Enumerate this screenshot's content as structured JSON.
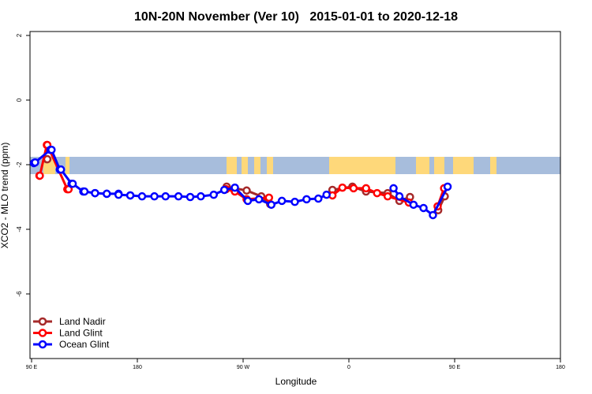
{
  "chart_data": {
    "type": "line",
    "title": "10N-20N November (Ver 10)   2015-01-01 to 2020-12-18",
    "xlabel": "Longitude",
    "ylabel": "XCO2 - MLO trend (ppm)",
    "x_ticks": [
      {
        "lon": 90,
        "label": "90 E"
      },
      {
        "lon": 180,
        "label": "180"
      },
      {
        "lon": -90,
        "label": "90 W"
      },
      {
        "lon": 0,
        "label": "0"
      },
      {
        "lon": 90,
        "label": "90 E",
        "wrap": true
      },
      {
        "lon": 180,
        "label": "180",
        "wrap": true
      }
    ],
    "y_ticks": [
      2,
      0,
      -2,
      -4,
      -6
    ],
    "ylim": [
      -8.0,
      2.1
    ],
    "xlim_note": "90E eastward through 180 and 0 to 180",
    "grid": false,
    "legend_position": "bottom-left",
    "background_map": {
      "ocean_color": "#a7bddc",
      "land_color": "#fed87a",
      "lat_band": "10N-20N"
    },
    "series": [
      {
        "name": "Land Nadir",
        "color": "#a52a2a",
        "points": [
          [
            103.4,
            -1.83
          ],
          [
            -104,
            -2.68
          ],
          [
            -87,
            -2.8
          ],
          [
            -74.5,
            -2.98
          ],
          [
            -67,
            -3.22
          ],
          [
            -14,
            -2.78
          ],
          [
            3,
            -2.68
          ],
          [
            14.6,
            -2.83
          ],
          [
            33,
            -2.88
          ],
          [
            43,
            -3.12
          ],
          [
            52,
            -3.0
          ],
          [
            76,
            -3.41
          ],
          [
            81.6,
            -2.98
          ],
          [
            103,
            -1.83
          ]
        ]
      },
      {
        "name": "Land Glint",
        "color": "#ff0000",
        "points": [
          [
            96.7,
            -2.34
          ],
          [
            103.4,
            -1.39
          ],
          [
            121.5,
            -2.76
          ],
          [
            -104.6,
            -2.76
          ],
          [
            -97,
            -2.83
          ],
          [
            -87,
            -3.07
          ],
          [
            -68,
            -3.02
          ],
          [
            -14,
            -2.95
          ],
          [
            -5.5,
            -2.71
          ],
          [
            4,
            -2.73
          ],
          [
            14.6,
            -2.73
          ],
          [
            24,
            -2.88
          ],
          [
            33,
            -2.98
          ],
          [
            51,
            -3.17
          ],
          [
            75.5,
            -3.29
          ],
          [
            81,
            -2.73
          ],
          [
            97,
            -2.34
          ],
          [
            103,
            -1.39
          ],
          [
            120.4,
            -2.76
          ]
        ]
      },
      {
        "name": "Ocean Glint",
        "color": "#0000ff",
        "points": [
          [
            93,
            -1.93
          ],
          [
            107,
            -1.54
          ],
          [
            115,
            -2.15
          ],
          [
            125,
            -2.59
          ],
          [
            135,
            -2.83
          ],
          [
            144,
            -2.88
          ],
          [
            154,
            -2.9
          ],
          [
            164,
            -2.9
          ],
          [
            174,
            -2.95
          ],
          [
            -176,
            -2.98
          ],
          [
            -165.5,
            -2.98
          ],
          [
            -156,
            -2.98
          ],
          [
            -145,
            -2.98
          ],
          [
            -135,
            -3.0
          ],
          [
            -126,
            -2.98
          ],
          [
            -115,
            -2.93
          ],
          [
            -106,
            -2.78
          ],
          [
            -97,
            -2.71
          ],
          [
            -86,
            -3.12
          ],
          [
            -76.5,
            -3.07
          ],
          [
            -66,
            -3.24
          ],
          [
            -57,
            -3.12
          ],
          [
            -46,
            -3.15
          ],
          [
            -36,
            -3.07
          ],
          [
            -26,
            -3.05
          ],
          [
            -19,
            -2.93
          ],
          [
            38,
            -2.73
          ],
          [
            43,
            -2.98
          ],
          [
            55,
            -3.24
          ],
          [
            63.5,
            -3.34
          ],
          [
            71.5,
            -3.56
          ],
          [
            84,
            -2.68
          ],
          [
            92,
            -1.95
          ],
          [
            106,
            -1.54
          ],
          [
            114,
            -2.15
          ],
          [
            124,
            -2.59
          ],
          [
            134,
            -2.83
          ],
          [
            144,
            -2.88
          ],
          [
            154,
            -2.9
          ],
          [
            164,
            -2.93
          ],
          [
            174,
            -2.95
          ]
        ]
      }
    ]
  }
}
